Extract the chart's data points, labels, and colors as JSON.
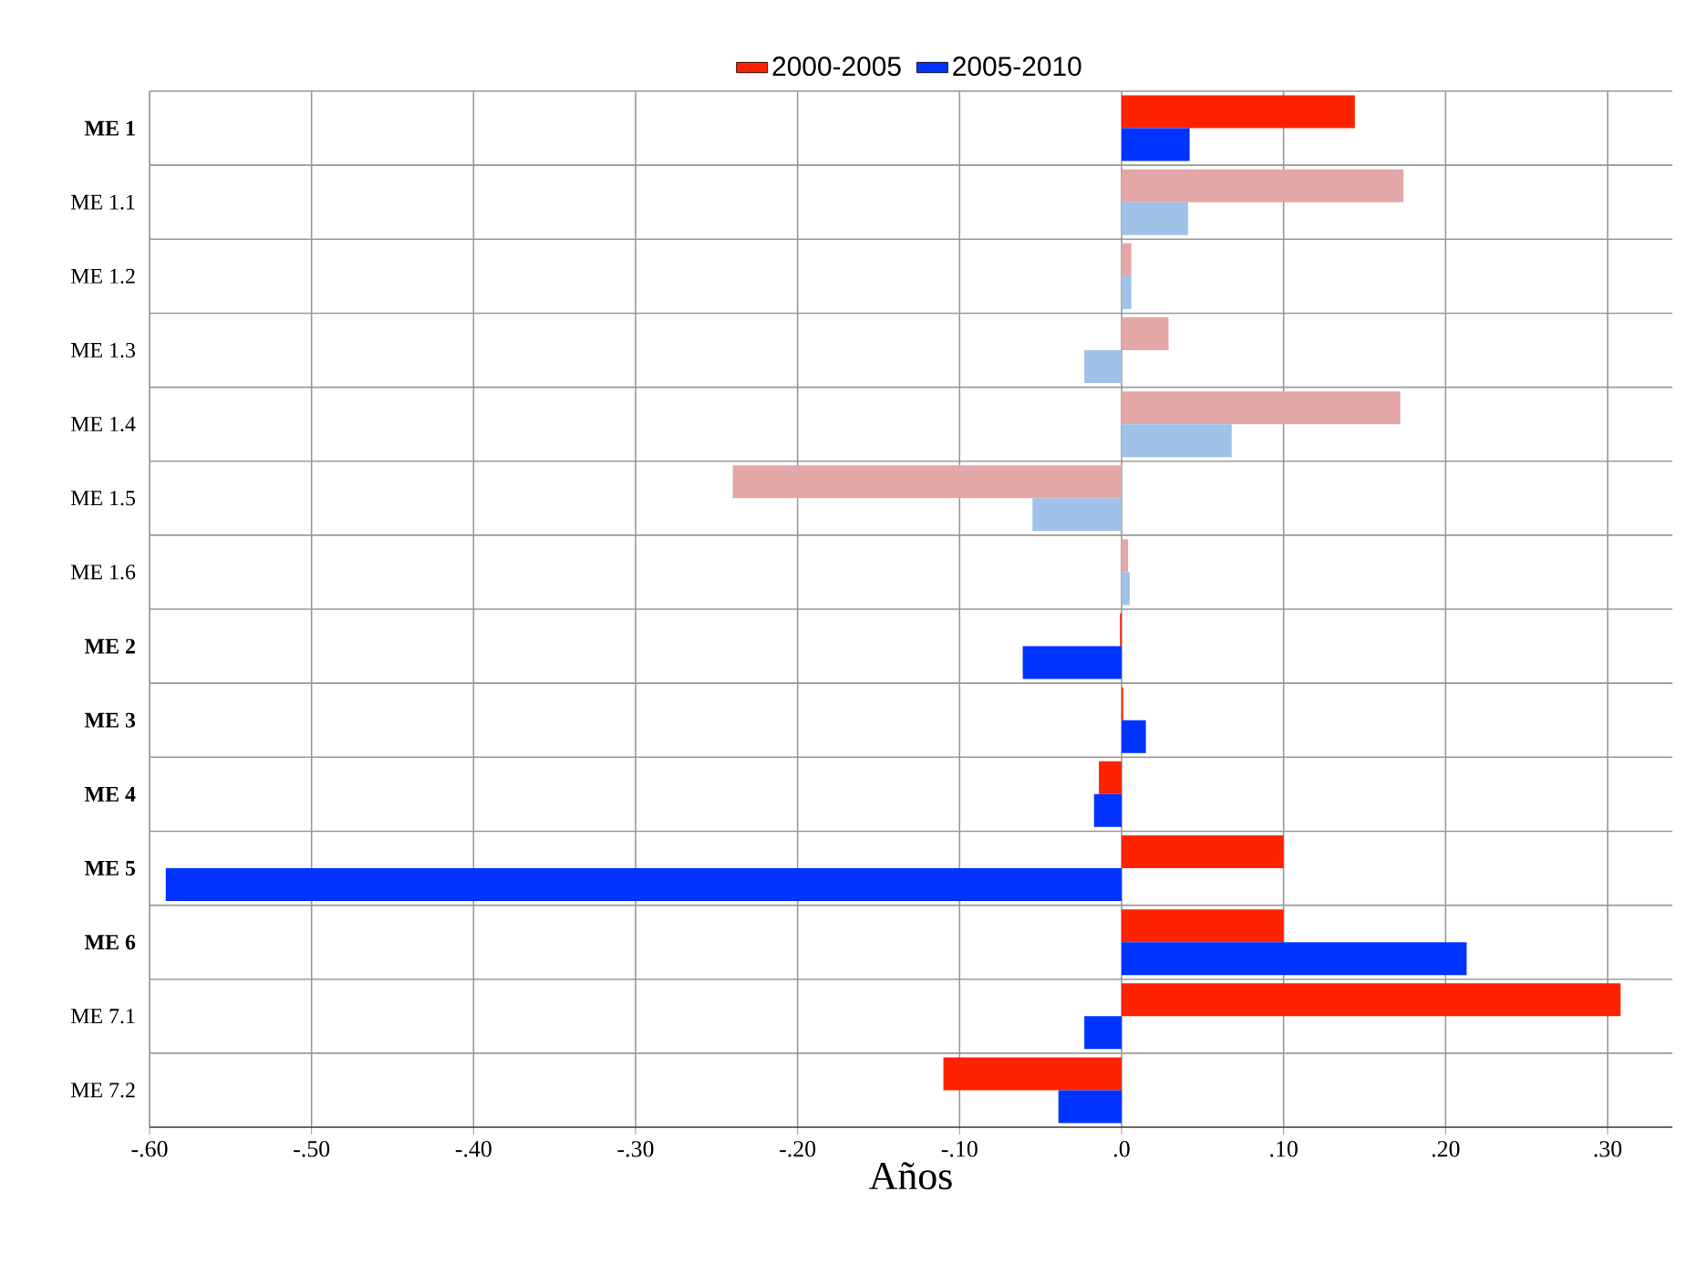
{
  "chart_data": {
    "type": "bar",
    "orientation": "horizontal",
    "xlabel": "Años",
    "categories": [
      "**ME 1**",
      "ME 1.1",
      "ME 1.2",
      "ME 1.3",
      "ME 1.4",
      "ME 1.5",
      "ME 1.6",
      "**ME 2**",
      "**ME 3**",
      "**ME 4**",
      "**ME 5**",
      "**ME 6**",
      "ME 7.1",
      "ME 7.2"
    ],
    "series": [
      {
        "name": "2000-2005",
        "color": "#ff2200",
        "colors": [
          "#ff2200",
          "#e2a7a6",
          "#e2a7a6",
          "#e2a7a6",
          "#e2a7a6",
          "#e2a7a6",
          "#e2a7a6",
          "#ff2200",
          "#ff2200",
          "#ff2200",
          "#ff2200",
          "#ff2200",
          "#ff2200",
          "#ff2200"
        ],
        "values": [
          0.144,
          0.174,
          0.006,
          0.029,
          0.172,
          -0.24,
          0.004,
          -0.001,
          0.001,
          -0.014,
          0.1,
          0.1,
          0.308,
          -0.11
        ]
      },
      {
        "name": "2005-2010",
        "color": "#0033ff",
        "colors": [
          "#0033ff",
          "#a0c1e8",
          "#a0c1e8",
          "#a0c1e8",
          "#a0c1e8",
          "#a0c1e8",
          "#a0c1e8",
          "#0033ff",
          "#0033ff",
          "#0033ff",
          "#0033ff",
          "#0033ff",
          "#0033ff",
          "#0033ff"
        ],
        "values": [
          0.042,
          0.041,
          0.006,
          -0.023,
          0.068,
          -0.055,
          0.005,
          -0.061,
          0.015,
          -0.017,
          -0.59,
          0.213,
          -0.023,
          -0.039
        ]
      }
    ],
    "xlim": [
      -0.6,
      0.34
    ],
    "xticks": [
      {
        "value": -0.6,
        "label": "-.60"
      },
      {
        "value": -0.5,
        "label": "-.50"
      },
      {
        "value": -0.4,
        "label": "-.40"
      },
      {
        "value": -0.3,
        "label": "-.30"
      },
      {
        "value": -0.2,
        "label": "-.20"
      },
      {
        "value": -0.1,
        "label": "-.10"
      },
      {
        "value": 0,
        "label": ".0"
      },
      {
        "value": 0.1,
        "label": ".10"
      },
      {
        "value": 0.2,
        "label": ".20"
      },
      {
        "value": 0.3,
        "label": ".30"
      }
    ],
    "grid": true,
    "legend": "top"
  }
}
